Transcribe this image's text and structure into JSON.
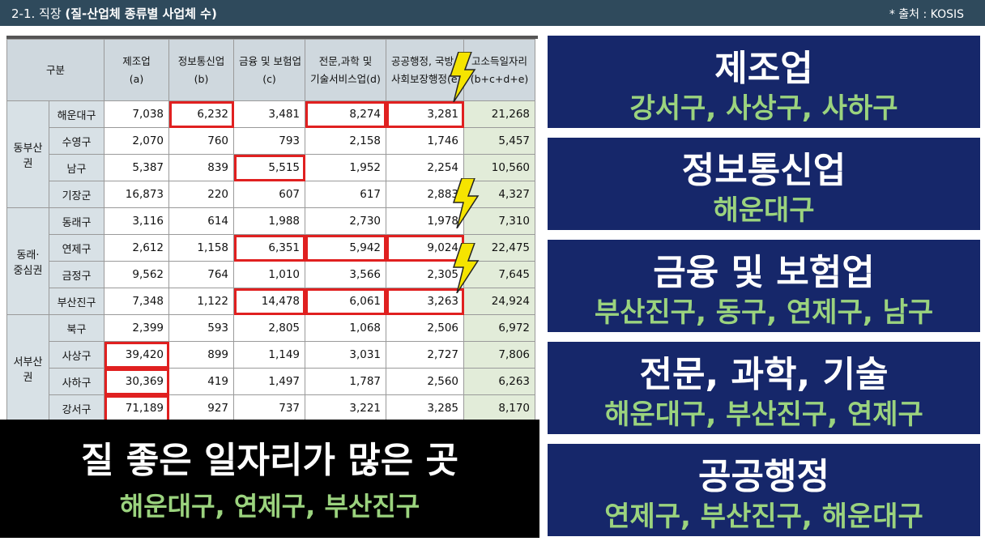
{
  "header": {
    "section": "2-1. 직장 ",
    "title": "(질-산업체 종류별 사업체 수)",
    "source": "* 출처 : KOSIS"
  },
  "table": {
    "corner": "구분",
    "columns": [
      {
        "line1": "제조업",
        "line2": "(a)"
      },
      {
        "line1": "정보통신업",
        "line2": "(b)"
      },
      {
        "line1": "금융 및 보험업",
        "line2": "(c)"
      },
      {
        "line1": "전문,과학 및",
        "line2": "기술서비스업(d)"
      },
      {
        "line1": "공공행정, 국방 및",
        "line2": "사회보장행정(e)"
      },
      {
        "line1": "고소득일자리",
        "line2": "(b+c+d+e)"
      }
    ],
    "groups": [
      {
        "name": "동부산권",
        "rows": [
          {
            "label": "해운대구",
            "values": [
              "7,038",
              "6,232",
              "3,481",
              "8,274",
              "3,281",
              "21,268"
            ]
          },
          {
            "label": "수영구",
            "values": [
              "2,070",
              "760",
              "793",
              "2,158",
              "1,746",
              "5,457"
            ]
          },
          {
            "label": "남구",
            "values": [
              "5,387",
              "839",
              "5,515",
              "1,952",
              "2,254",
              "10,560"
            ]
          },
          {
            "label": "기장군",
            "values": [
              "16,873",
              "220",
              "607",
              "617",
              "2,883",
              "4,327"
            ]
          }
        ]
      },
      {
        "name": "동래·\n중심권",
        "rows": [
          {
            "label": "동래구",
            "values": [
              "3,116",
              "614",
              "1,988",
              "2,730",
              "1,978",
              "7,310"
            ]
          },
          {
            "label": "연제구",
            "values": [
              "2,612",
              "1,158",
              "6,351",
              "5,942",
              "9,024",
              "22,475"
            ]
          },
          {
            "label": "금정구",
            "values": [
              "9,562",
              "764",
              "1,010",
              "3,566",
              "2,305",
              "7,645"
            ]
          },
          {
            "label": "부산진구",
            "values": [
              "7,348",
              "1,122",
              "14,478",
              "6,061",
              "3,263",
              "24,924"
            ]
          }
        ]
      },
      {
        "name": "서부산권",
        "rows": [
          {
            "label": "북구",
            "values": [
              "2,399",
              "593",
              "2,805",
              "1,068",
              "2,506",
              "6,972"
            ]
          },
          {
            "label": "사상구",
            "values": [
              "39,420",
              "899",
              "1,149",
              "3,031",
              "2,727",
              "7,806"
            ]
          },
          {
            "label": "사하구",
            "values": [
              "30,369",
              "419",
              "1,497",
              "1,787",
              "2,560",
              "6,263"
            ]
          },
          {
            "label": "강서구",
            "values": [
              "71,189",
              "927",
              "737",
              "3,221",
              "3,285",
              "8,170"
            ]
          }
        ]
      }
    ],
    "highlights": [
      [
        0,
        1
      ],
      [
        0,
        3
      ],
      [
        0,
        4
      ],
      [
        2,
        2
      ],
      [
        5,
        2
      ],
      [
        5,
        3
      ],
      [
        5,
        4
      ],
      [
        7,
        2
      ],
      [
        7,
        3
      ],
      [
        7,
        4
      ],
      [
        9,
        0
      ],
      [
        10,
        0
      ],
      [
        11,
        0
      ]
    ]
  },
  "summary": {
    "headline": "질 좋은 일자리가 많은 곳",
    "districts": "해운대구, 연제구, 부산진구"
  },
  "cards": [
    {
      "industry": "제조업",
      "districts": "강서구, 사상구, 사하구"
    },
    {
      "industry": "정보통신업",
      "districts": "해운대구"
    },
    {
      "industry": "금융 및 보험업",
      "districts": "부산진구, 동구, 연제구, 남구"
    },
    {
      "industry": "전문, 과학, 기술",
      "districts": "해운대구, 부산진구, 연제구"
    },
    {
      "industry": "공공행정",
      "districts": "연제구, 부산진구, 해운대구"
    }
  ],
  "colors": {
    "topbar": "#2f4a5c",
    "card_bg": "#16276a",
    "highlight_green": "#9bd37e",
    "highlight_red": "#e02020",
    "bolt_yellow": "#f5e400"
  }
}
